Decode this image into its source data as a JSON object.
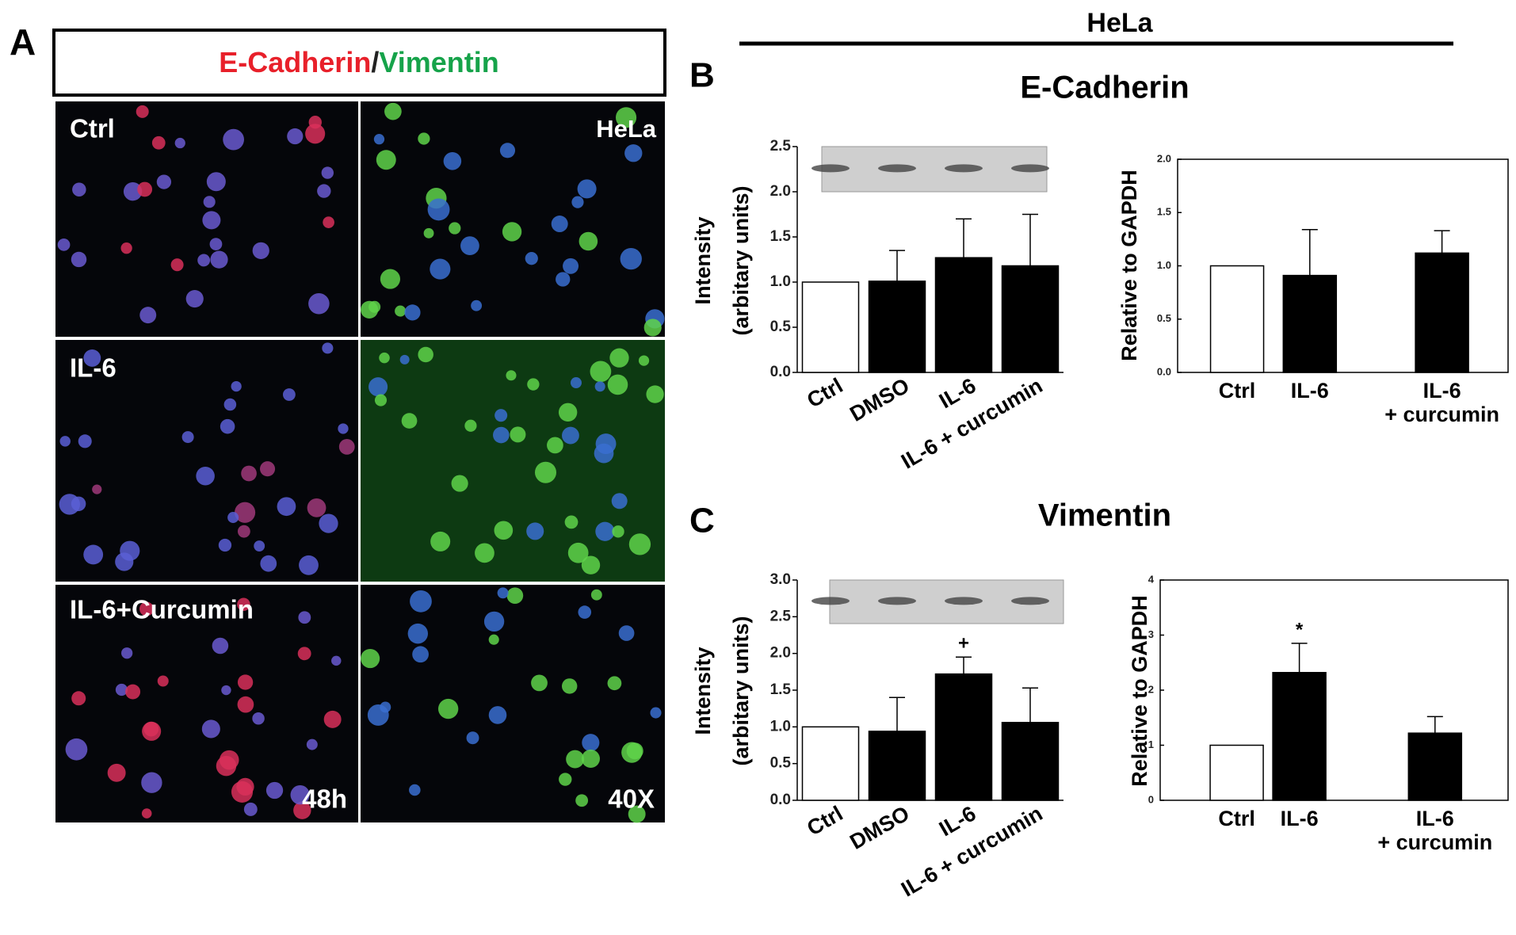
{
  "panel_a": {
    "label": "A",
    "title": {
      "red": "E-Cadherin",
      "separator": "/",
      "green": "Vimentin"
    },
    "rows": [
      "Ctrl",
      "IL-6",
      "IL-6+Curcumin"
    ],
    "cell_line": "HeLa",
    "time": "48h",
    "magnification": "40X"
  },
  "header": "HeLa",
  "panel_b": {
    "label": "B",
    "title": "E-Cadherin"
  },
  "panel_c": {
    "label": "C",
    "title": "Vimentin"
  },
  "chart_data": [
    {
      "type": "bar",
      "ylabel": [
        "Intensity",
        "(arbitary units)"
      ],
      "categories": [
        "Ctrl",
        "DMSO",
        "IL-6",
        "IL-6 + curcumin"
      ],
      "values": [
        1.0,
        1.01,
        1.27,
        1.18
      ],
      "errors": [
        null,
        0.34,
        0.43,
        0.57
      ],
      "colors": [
        "#ffffff",
        "#000000",
        "#000000",
        "#000000"
      ],
      "ylim": [
        0,
        2.5
      ],
      "yticks": [
        {
          "value": 0,
          "label": "0.0"
        },
        0.5,
        {
          "value": 1,
          "label": "1.0"
        },
        1.5,
        {
          "value": 2,
          "label": "2.0"
        },
        2.5
      ]
    },
    {
      "type": "bar",
      "ylabel": "Relative to GAPDH",
      "categories": [
        "Ctrl",
        "IL-6",
        "IL-6\n+ curcumin"
      ],
      "values": [
        1.0,
        0.91,
        1.12
      ],
      "errors": [
        null,
        0.43,
        0.21
      ],
      "colors": [
        "#ffffff",
        "#000000",
        "#000000"
      ],
      "ylim": [
        0,
        2
      ],
      "yticks": [
        {
          "value": 0,
          "label": "0.0"
        },
        0.5,
        {
          "value": 1,
          "label": "1.0"
        },
        1.5,
        {
          "value": 2,
          "label": "2.0"
        }
      ]
    },
    {
      "type": "bar",
      "ylabel": [
        "Intensity",
        "(arbitary units)"
      ],
      "categories": [
        "Ctrl",
        "DMSO",
        "IL-6",
        "IL-6 + curcumin"
      ],
      "values": [
        1.0,
        0.94,
        1.72,
        1.06
      ],
      "errors": [
        null,
        0.46,
        0.23,
        0.47
      ],
      "annotations": [
        null,
        null,
        "+",
        null
      ],
      "colors": [
        "#ffffff",
        "#000000",
        "#000000",
        "#000000"
      ],
      "ylim": [
        0,
        3
      ],
      "yticks": [
        {
          "value": 0,
          "label": "0.0"
        },
        0.5,
        {
          "value": 1,
          "label": "1.0"
        },
        1.5,
        {
          "value": 2,
          "label": "2.0"
        },
        2.5,
        {
          "value": 3,
          "label": "3.0"
        }
      ]
    },
    {
      "type": "bar",
      "ylabel": "Relative to GAPDH",
      "categories": [
        "Ctrl",
        "IL-6",
        "IL-6\n+ curcumin"
      ],
      "values": [
        1.0,
        2.32,
        1.22
      ],
      "errors": [
        null,
        0.53,
        0.3
      ],
      "annotations": [
        null,
        "*",
        null
      ],
      "colors": [
        "#ffffff",
        "#000000",
        "#000000"
      ],
      "ylim": [
        0,
        4
      ],
      "yticks": [
        0,
        1,
        2,
        3,
        4
      ]
    }
  ]
}
